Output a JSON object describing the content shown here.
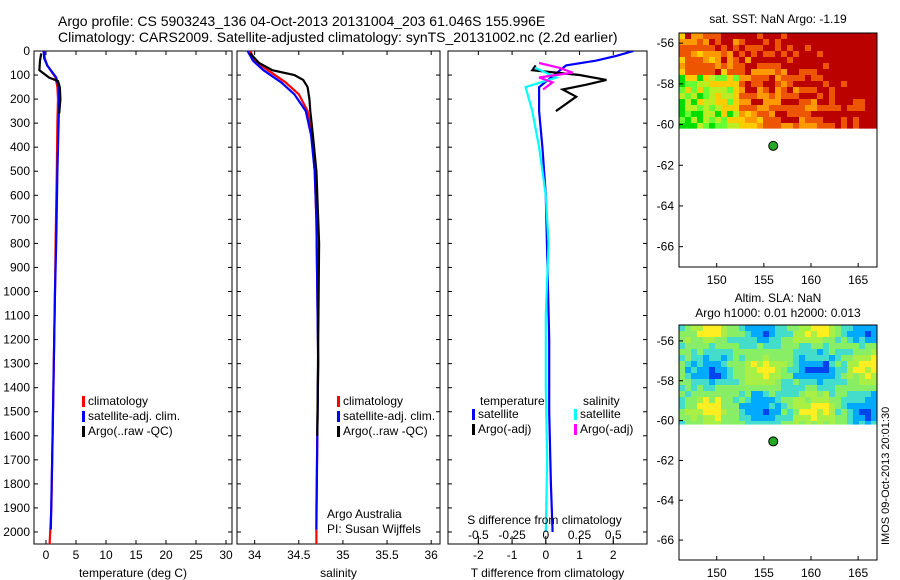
{
  "titles": {
    "line1": "Argo profile: CS 5903243_136 04-Oct-2013 20131004_203 61.046S 155.996E",
    "line2": "Climatology: CARS2009. Satellite-adjusted climatology: synTS_20131002.nc (2.2d earlier)",
    "sst_title": "sat. SST: NaN Argo: -1.19",
    "sla_title1": "Altim. SLA: NaN",
    "sla_title2": "Argo h1000: 0.01 h2000: 0.013",
    "watermark": "IMOS 09-Oct-2013 20:01:30"
  },
  "legends": {
    "temp": [
      "climatology",
      "satellite-adj. clim.",
      "Argo(..raw -QC)"
    ],
    "sal": [
      "climatology",
      "satellite-adj. clim.",
      "Argo(..raw -QC)"
    ],
    "diff_head_t": "temperature",
    "diff_head_s": "salinity",
    "diff_t": [
      "satellite",
      "Argo(-adj)"
    ],
    "diff_s": [
      "satellite",
      "Argo(-adj)"
    ],
    "argo_australia": "Argo Australia",
    "pi": "PI: Susan Wijffels"
  },
  "colors": {
    "climatology": "#ff0000",
    "satellite": "#0000ff",
    "argo": "#000000",
    "sat_s": "#00ffff",
    "argo_s": "#ff00ff",
    "float_marker": "#22aa22"
  },
  "chart_data": [
    {
      "type": "line",
      "name": "temperature",
      "xlabel": "temperature (deg C)",
      "ylabel": "",
      "xlim": [
        -2,
        31
      ],
      "ylim": [
        2050,
        0
      ],
      "xticks": [
        0,
        5,
        10,
        15,
        20,
        25,
        30
      ],
      "yticks": [
        0,
        100,
        200,
        300,
        400,
        500,
        600,
        700,
        800,
        900,
        1000,
        1100,
        1200,
        1300,
        1400,
        1500,
        1600,
        1700,
        1800,
        1900,
        2000
      ],
      "series": [
        {
          "name": "climatology",
          "color": "#ff0000",
          "x": [
            -0.3,
            -0.2,
            0.2,
            1.6,
            1.9,
            2.0,
            1.9,
            1.8,
            1.6,
            1.5,
            1.3,
            1.1,
            0.9,
            0.6
          ],
          "y": [
            0,
            30,
            60,
            110,
            150,
            200,
            300,
            500,
            800,
            1000,
            1300,
            1600,
            1900,
            2050
          ]
        },
        {
          "name": "satellite-adj. clim.",
          "color": "#0000ff",
          "x": [
            -0.4,
            -0.3,
            0.2,
            1.7,
            2.1,
            2.2,
            2.1,
            1.9,
            1.7,
            1.5,
            1.3,
            1.1,
            0.8
          ],
          "y": [
            0,
            30,
            60,
            110,
            150,
            200,
            300,
            500,
            800,
            1000,
            1300,
            1600,
            1990
          ]
        },
        {
          "name": "Argo(..raw -QC)",
          "color": "#000000",
          "x": [
            -0.8,
            -1.0,
            -1.1,
            0.5,
            2.0,
            2.3,
            2.4,
            2.2
          ],
          "y": [
            10,
            40,
            80,
            110,
            125,
            150,
            200,
            260
          ]
        }
      ]
    },
    {
      "type": "line",
      "name": "salinity",
      "xlabel": "salinity",
      "ylabel": "",
      "xlim": [
        33.8,
        36.1
      ],
      "ylim": [
        2050,
        0
      ],
      "xticks": [
        34,
        34.5,
        35,
        35.5,
        36
      ],
      "series": [
        {
          "name": "climatology",
          "color": "#ff0000",
          "x": [
            33.95,
            34.0,
            34.15,
            34.35,
            34.5,
            34.6,
            34.65,
            34.68,
            34.7,
            34.71,
            34.72,
            34.71,
            34.7,
            34.7
          ],
          "y": [
            0,
            40,
            80,
            130,
            180,
            250,
            350,
            500,
            700,
            1000,
            1300,
            1600,
            1900,
            2050
          ]
        },
        {
          "name": "satellite-adj. clim.",
          "color": "#0000ff",
          "x": [
            33.92,
            33.98,
            34.1,
            34.3,
            34.45,
            34.58,
            34.64,
            34.68,
            34.7,
            34.71,
            34.72,
            34.71,
            34.7
          ],
          "y": [
            0,
            40,
            80,
            130,
            180,
            250,
            350,
            500,
            700,
            1000,
            1300,
            1600,
            1990
          ]
        },
        {
          "name": "Argo(..raw -QC)",
          "color": "#000000",
          "x": [
            33.95,
            34.05,
            34.2,
            34.45,
            34.55,
            34.6,
            34.62,
            34.63,
            34.66,
            34.7,
            34.73,
            34.72,
            34.71
          ],
          "y": [
            10,
            50,
            80,
            100,
            120,
            150,
            200,
            250,
            350,
            500,
            800,
            1200,
            1600
          ]
        }
      ]
    },
    {
      "type": "line",
      "name": "difference",
      "xlabel": "T difference from climatology",
      "x2label": "S difference from climatology",
      "ylabel": "",
      "xlim": [
        -2.9,
        3.0
      ],
      "x2lim": [
        -0.725,
        0.75
      ],
      "ylim": [
        2050,
        0
      ],
      "xticks": [
        -2,
        -1,
        0,
        1,
        2
      ],
      "x2ticks": [
        -0.5,
        -0.25,
        0,
        0.25,
        0.5
      ],
      "series": [
        {
          "name": "temperature satellite",
          "color": "#0000ff",
          "axis": "T",
          "x": [
            2.6,
            2.1,
            1.5,
            0.6,
            -0.2,
            -0.2,
            -0.1,
            0.0,
            0.05,
            0.1,
            0.1,
            0.15,
            0.2
          ],
          "y": [
            0,
            20,
            40,
            60,
            150,
            250,
            400,
            600,
            900,
            1200,
            1500,
            1800,
            2000
          ]
        },
        {
          "name": "temperature Argo(-adj)",
          "color": "#000000",
          "axis": "T",
          "x": [
            -0.3,
            -0.4,
            1.0,
            1.8,
            1.2,
            0.5,
            0.9,
            0.3
          ],
          "y": [
            60,
            80,
            100,
            120,
            140,
            160,
            190,
            250
          ]
        },
        {
          "name": "salinity satellite",
          "color": "#00ffff",
          "axis": "S",
          "x": [
            -0.08,
            0.0,
            0.08,
            -0.15,
            -0.1,
            -0.05,
            0.0,
            0.02,
            0.0,
            0.0,
            0.01,
            0.0
          ],
          "y": [
            70,
            90,
            110,
            150,
            250,
            400,
            600,
            800,
            1100,
            1400,
            1700,
            2000
          ]
        },
        {
          "name": "salinity Argo(-adj)",
          "color": "#ff00ff",
          "axis": "S",
          "x": [
            -0.05,
            0.1,
            0.2,
            -0.05,
            0.05,
            -0.02
          ],
          "y": [
            50,
            70,
            90,
            110,
            130,
            160
          ]
        }
      ]
    },
    {
      "type": "heatmap",
      "name": "sst-map",
      "xlim": [
        146,
        167
      ],
      "ylim": [
        -67,
        -55.5
      ],
      "xticks": [
        150,
        155,
        160,
        165
      ],
      "yticks": [
        -56,
        -58,
        -60,
        -62,
        -64,
        -66
      ],
      "data_extent_lat": [
        -60.2,
        -55.5
      ],
      "float_position": {
        "lon": 155.996,
        "lat": -61.046
      }
    },
    {
      "type": "heatmap",
      "name": "sla-map",
      "xlim": [
        146,
        167
      ],
      "ylim": [
        -67,
        -55.2
      ],
      "xticks": [
        150,
        155,
        160,
        165
      ],
      "yticks": [
        -56,
        -58,
        -60,
        -62,
        -64,
        -66
      ],
      "data_extent_lat": [
        -60.2,
        -55.2
      ],
      "float_position": {
        "lon": 155.996,
        "lat": -61.046
      }
    }
  ]
}
